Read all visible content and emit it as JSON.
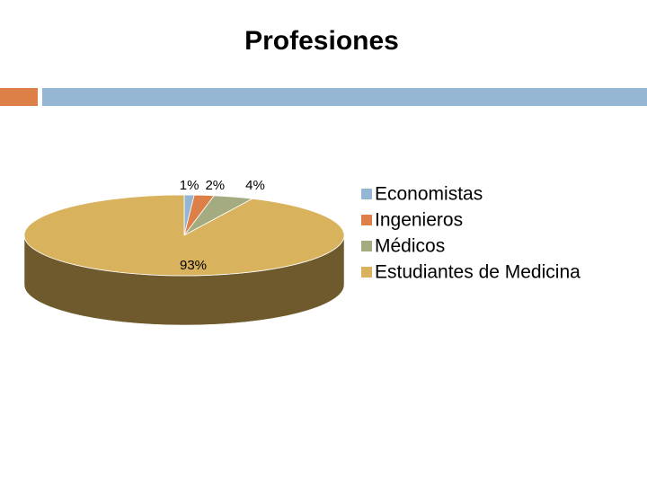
{
  "chart_data": {
    "type": "pie",
    "title": "Profesiones",
    "categories": [
      "Economistas",
      "Ingenieros",
      "Médicos",
      "Estudiantes de Medicina"
    ],
    "values": [
      1,
      2,
      4,
      93
    ],
    "value_labels": [
      "1%",
      "2%",
      "4%",
      "93%"
    ],
    "colors": [
      "#94b6d2",
      "#dd8047",
      "#a5ab81",
      "#d8b25c"
    ],
    "legend": "right"
  }
}
